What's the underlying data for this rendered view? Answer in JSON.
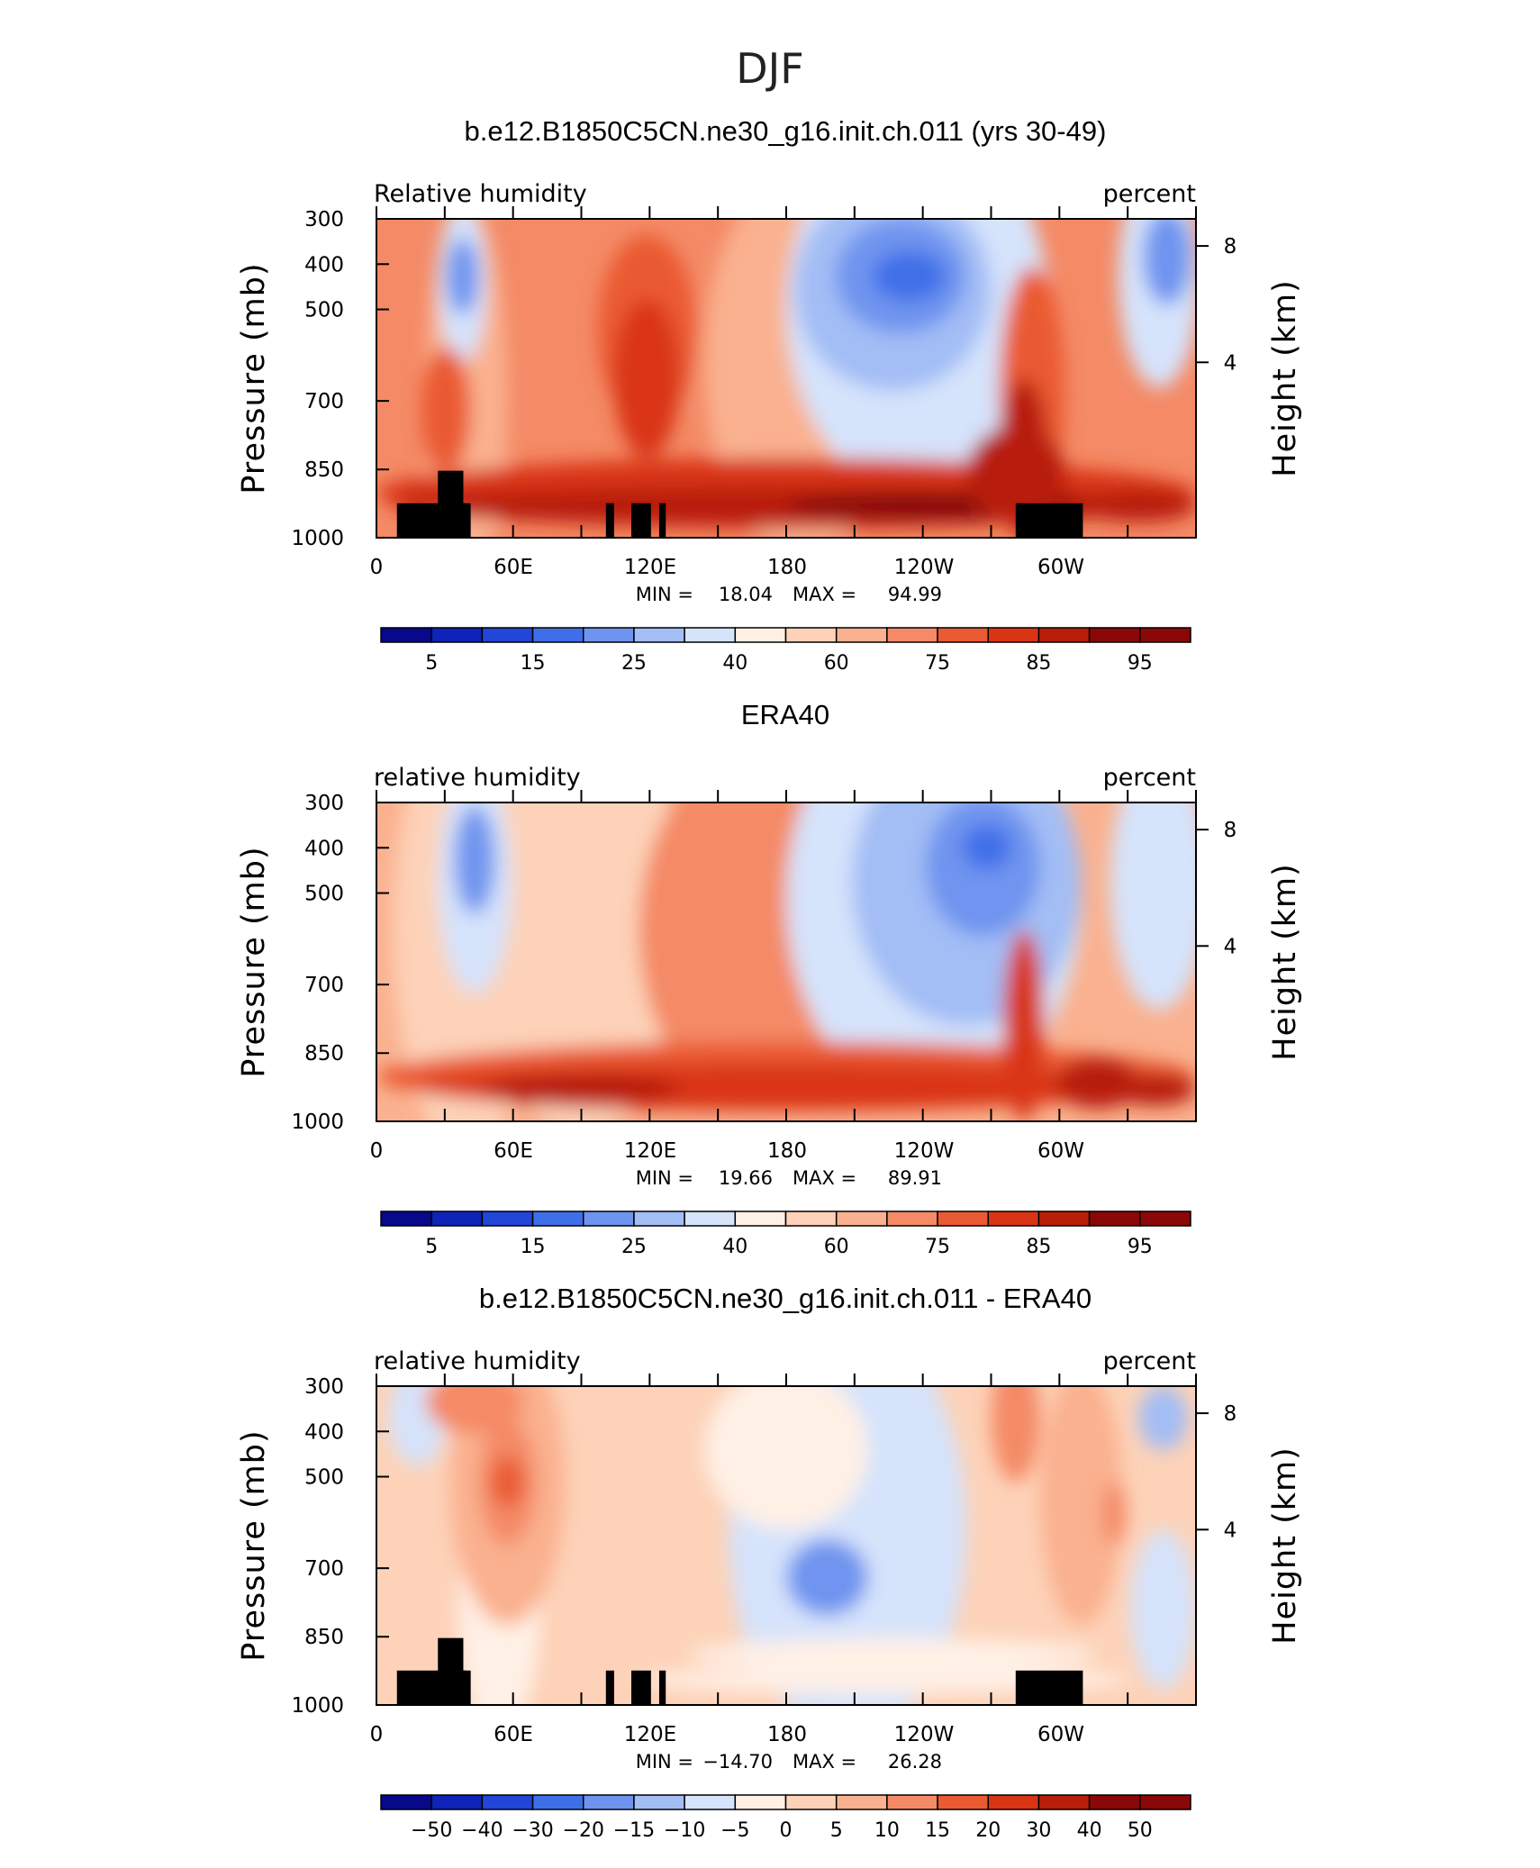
{
  "figure": {
    "title": "DJF",
    "colors": {
      "diverging": [
        "#08088a",
        "#0e23b8",
        "#2146d8",
        "#3f6fe8",
        "#6f94ef",
        "#a3bdf5",
        "#d5e3fb",
        "#fff0e6",
        "#fdd2b8",
        "#fab18f",
        "#f48a66",
        "#ea5a33",
        "#d93515",
        "#b81e08",
        "#8a0808"
      ]
    }
  },
  "chart_data": [
    {
      "type": "heatmap",
      "title": "b.e12.B1850C5CN.ne30_g16.init.ch.011 (yrs 30-49)",
      "left_label": "Relative humidity",
      "right_label": "percent",
      "xlabel": "",
      "ylabel": "Pressure (mb)",
      "y2label": "Height (km)",
      "x_ticks": [
        "0",
        "60E",
        "120E",
        "180",
        "120W",
        "60W"
      ],
      "x_range": [
        0,
        360
      ],
      "y_ticks": [
        "300",
        "400",
        "500",
        "700",
        "850",
        "1000"
      ],
      "y_range_mb": [
        1000,
        300
      ],
      "y2_ticks": [
        "8",
        "4"
      ],
      "min_label": "MIN =",
      "min_value": "18.04",
      "max_label": "MAX =",
      "max_value": "94.99",
      "colorbar_levels": [
        5,
        10,
        15,
        20,
        25,
        30,
        40,
        50,
        60,
        70,
        75,
        80,
        85,
        90,
        95
      ],
      "colorbar_labels": [
        "5",
        "15",
        "25",
        "40",
        "60",
        "75",
        "85",
        "95"
      ],
      "topography": true
    },
    {
      "type": "heatmap",
      "title": "ERA40",
      "left_label": "relative humidity",
      "right_label": "percent",
      "xlabel": "",
      "ylabel": "Pressure (mb)",
      "y2label": "Height (km)",
      "x_ticks": [
        "0",
        "60E",
        "120E",
        "180",
        "120W",
        "60W"
      ],
      "x_range": [
        0,
        360
      ],
      "y_ticks": [
        "300",
        "400",
        "500",
        "700",
        "850",
        "1000"
      ],
      "y_range_mb": [
        1000,
        300
      ],
      "y2_ticks": [
        "8",
        "4"
      ],
      "min_label": "MIN =",
      "min_value": "19.66",
      "max_label": "MAX =",
      "max_value": "89.91",
      "colorbar_levels": [
        5,
        10,
        15,
        20,
        25,
        30,
        40,
        50,
        60,
        70,
        75,
        80,
        85,
        90,
        95
      ],
      "colorbar_labels": [
        "5",
        "15",
        "25",
        "40",
        "60",
        "75",
        "85",
        "95"
      ],
      "topography": false
    },
    {
      "type": "heatmap",
      "title": "b.e12.B1850C5CN.ne30_g16.init.ch.011 - ERA40",
      "left_label": "relative humidity",
      "right_label": "percent",
      "xlabel": "",
      "ylabel": "Pressure (mb)",
      "y2label": "Height (km)",
      "x_ticks": [
        "0",
        "60E",
        "120E",
        "180",
        "120W",
        "60W"
      ],
      "x_range": [
        0,
        360
      ],
      "y_ticks": [
        "300",
        "400",
        "500",
        "700",
        "850",
        "1000"
      ],
      "y_range_mb": [
        1000,
        300
      ],
      "y2_ticks": [
        "8",
        "4"
      ],
      "min_label": "MIN =",
      "min_value": "−14.70",
      "max_label": "MAX =",
      "max_value": "26.28",
      "colorbar_levels": [
        -50,
        -40,
        -30,
        -20,
        -15,
        -10,
        -5,
        0,
        5,
        10,
        15,
        20,
        30,
        40,
        50
      ],
      "colorbar_labels": [
        "−50",
        "−40",
        "−30",
        "−20",
        "−15",
        "−10",
        "−5",
        "0",
        "5",
        "10",
        "15",
        "20",
        "30",
        "40",
        "50"
      ],
      "topography": true
    }
  ]
}
